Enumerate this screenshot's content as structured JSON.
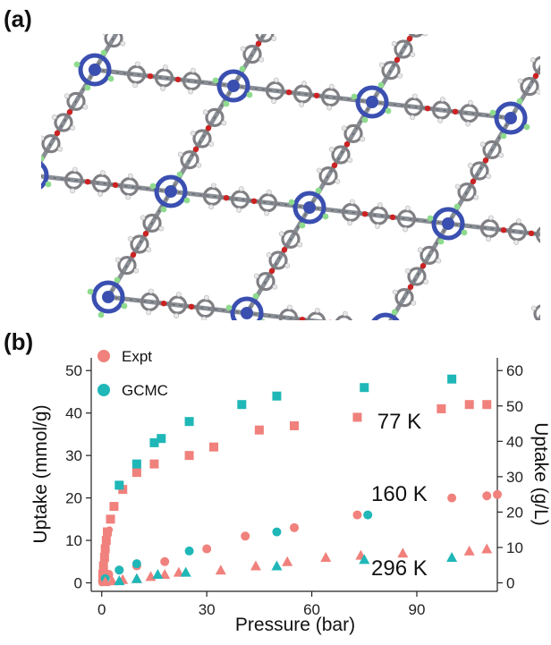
{
  "panels": {
    "a": "(a)",
    "b": "(b)"
  },
  "structure": {
    "icon": "framework-crystal-structure",
    "colors": {
      "bond": "#8a8f96",
      "carbon": "#7f7f84",
      "metal": "#3a4fb0",
      "oxygen": "#cc2222",
      "fluorine": "#8edb8e",
      "hydrogen": "#e8e8e8"
    }
  },
  "chart_data": {
    "type": "scatter",
    "xlabel": "Pressure (bar)",
    "ylabel": "Uptake (mmol/g)",
    "y2label": "Uptake (g/L)",
    "xticks": [
      0,
      30,
      60,
      90
    ],
    "yticks": [
      0,
      10,
      20,
      30,
      40,
      50
    ],
    "y2ticks": [
      0,
      10,
      20,
      30,
      40,
      50,
      60
    ],
    "xlim": [
      -3,
      113
    ],
    "ylim": [
      -2,
      53
    ],
    "y2lim": [
      -2.4,
      63.6
    ],
    "grid": false,
    "legend_position": "top-left",
    "legend": [
      {
        "name": "Expt",
        "color": "#f0817c"
      },
      {
        "name": "GCMC",
        "color": "#1fb7b7"
      }
    ],
    "temperature_labels": [
      {
        "text": "77 K",
        "marker": "square",
        "x": 85,
        "y": 38
      },
      {
        "text": "160 K",
        "marker": "circle",
        "x": 85,
        "y": 21
      },
      {
        "text": "296 K",
        "marker": "triangle",
        "x": 85,
        "y": 3.5
      }
    ],
    "series": [
      {
        "name": "Expt",
        "temperature": "77 K",
        "marker": "square",
        "color": "#f0817c",
        "points": [
          [
            0.3,
            2
          ],
          [
            0.5,
            4
          ],
          [
            0.8,
            6
          ],
          [
            1.0,
            8
          ],
          [
            1.3,
            10
          ],
          [
            1.6,
            12
          ],
          [
            2.5,
            15
          ],
          [
            3.5,
            18
          ],
          [
            6,
            22
          ],
          [
            10,
            26
          ],
          [
            15,
            28
          ],
          [
            25,
            30
          ],
          [
            32,
            32
          ],
          [
            45,
            36
          ],
          [
            55,
            37
          ],
          [
            73,
            39
          ],
          [
            97,
            41
          ],
          [
            105,
            42
          ],
          [
            110,
            42
          ]
        ]
      },
      {
        "name": "GCMC",
        "temperature": "77 K",
        "marker": "square",
        "color": "#1fb7b7",
        "points": [
          [
            5,
            23
          ],
          [
            10,
            28
          ],
          [
            15,
            33
          ],
          [
            17,
            34
          ],
          [
            25,
            38
          ],
          [
            40,
            42
          ],
          [
            50,
            44
          ],
          [
            75,
            46
          ],
          [
            100,
            48
          ]
        ]
      },
      {
        "name": "Expt",
        "temperature": "160 K",
        "marker": "circle",
        "color": "#f0817c",
        "points": [
          [
            0.2,
            0.5
          ],
          [
            0.5,
            1
          ],
          [
            1,
            1.5
          ],
          [
            2,
            2
          ],
          [
            5,
            3
          ],
          [
            10,
            4
          ],
          [
            18,
            5
          ],
          [
            30,
            8
          ],
          [
            41,
            11
          ],
          [
            55,
            13
          ],
          [
            73,
            16
          ],
          [
            100,
            20
          ],
          [
            110,
            20.5
          ],
          [
            113,
            20.8
          ]
        ]
      },
      {
        "name": "GCMC",
        "temperature": "160 K",
        "marker": "circle",
        "color": "#1fb7b7",
        "points": [
          [
            1,
            1
          ],
          [
            5,
            3
          ],
          [
            10,
            4.5
          ],
          [
            25,
            7.5
          ],
          [
            50,
            12
          ],
          [
            76,
            16
          ]
        ]
      },
      {
        "name": "Expt",
        "temperature": "296 K",
        "marker": "triangle",
        "color": "#f0817c",
        "points": [
          [
            1,
            0.3
          ],
          [
            3,
            0.5
          ],
          [
            6,
            0.8
          ],
          [
            10,
            1
          ],
          [
            14,
            1.5
          ],
          [
            18,
            2
          ],
          [
            22,
            2.5
          ],
          [
            34,
            3
          ],
          [
            44,
            4
          ],
          [
            53,
            5
          ],
          [
            64,
            6
          ],
          [
            74,
            6.5
          ],
          [
            86,
            7
          ],
          [
            105,
            7.5
          ],
          [
            110,
            8
          ]
        ]
      },
      {
        "name": "GCMC",
        "temperature": "296 K",
        "marker": "triangle",
        "color": "#1fb7b7",
        "points": [
          [
            5,
            0.5
          ],
          [
            10,
            1
          ],
          [
            16,
            2
          ],
          [
            24,
            2.5
          ],
          [
            50,
            4
          ],
          [
            75,
            5.5
          ],
          [
            100,
            6
          ]
        ]
      }
    ],
    "dense_low_pressure_curve": {
      "color": "#f0817c",
      "points": [
        [
          0,
          0
        ],
        [
          0.05,
          0.6
        ],
        [
          0.1,
          1.2
        ],
        [
          0.15,
          1.8
        ],
        [
          0.2,
          2.5
        ],
        [
          0.3,
          3.5
        ],
        [
          0.4,
          4.5
        ],
        [
          0.5,
          5.5
        ],
        [
          0.6,
          6.5
        ],
        [
          0.8,
          7.5
        ],
        [
          1.0,
          8.5
        ],
        [
          1.2,
          9.5
        ],
        [
          1.5,
          10.5
        ],
        [
          1.8,
          11.5
        ],
        [
          2.2,
          12.5
        ]
      ]
    }
  }
}
